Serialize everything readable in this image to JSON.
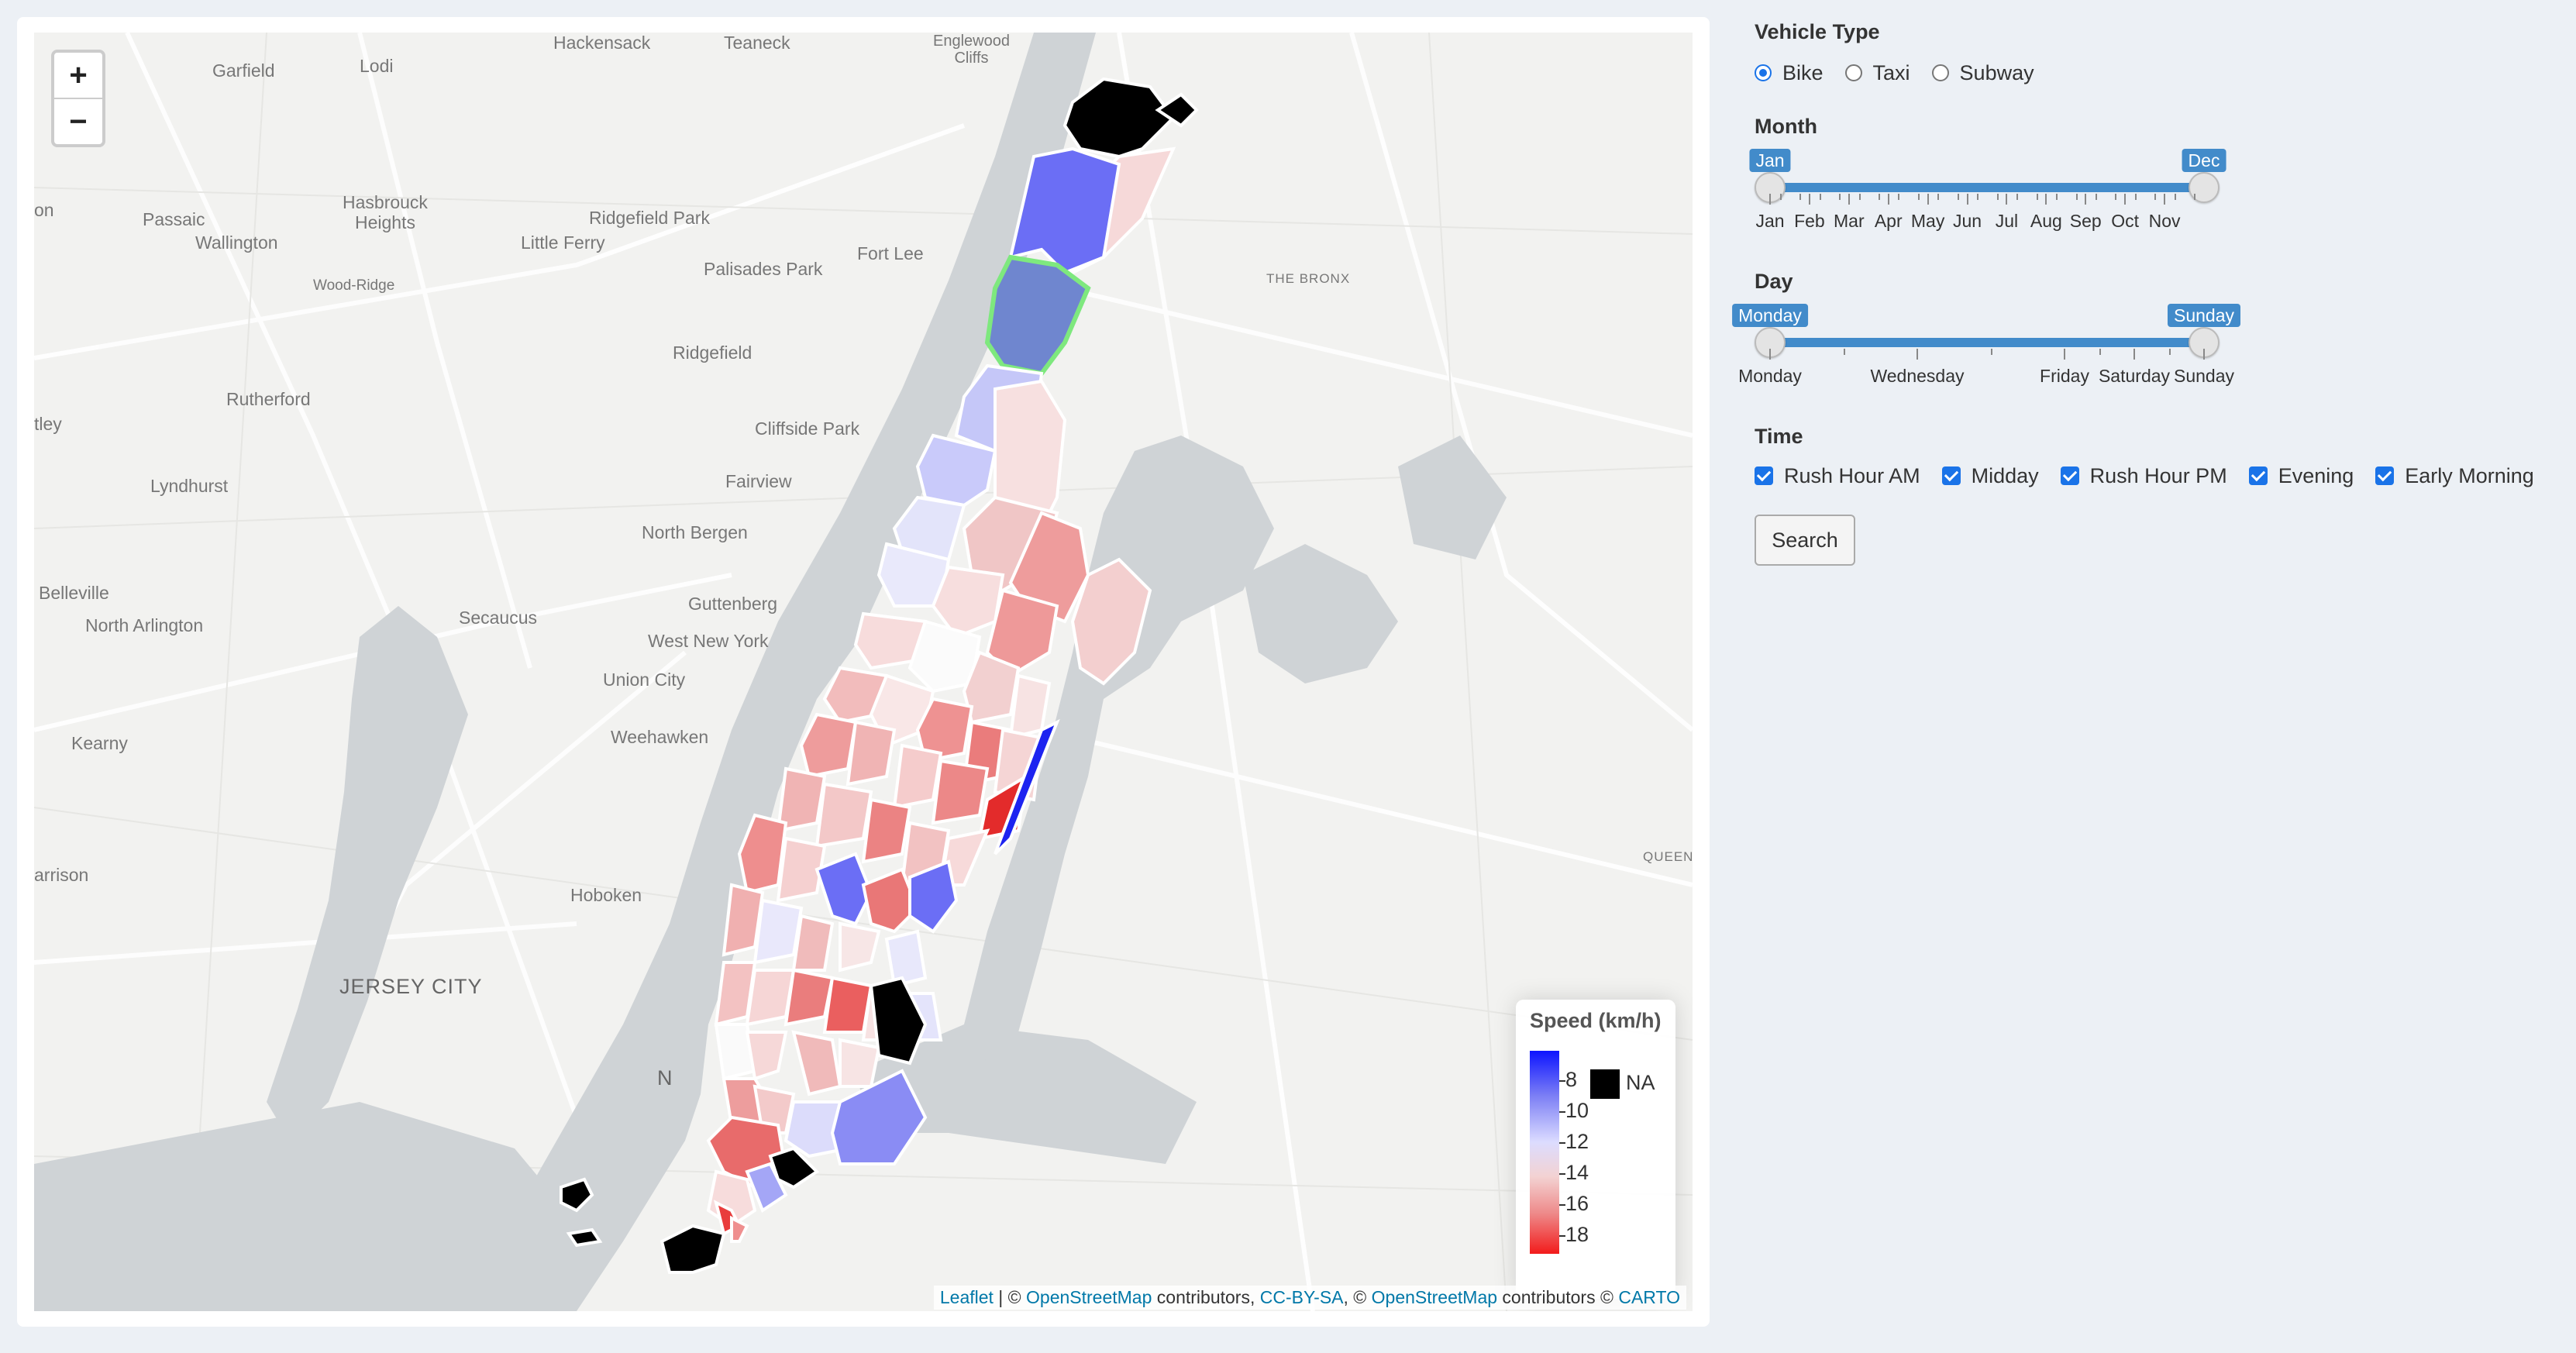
{
  "map": {
    "zoom_in": "+",
    "zoom_out": "−",
    "places": {
      "hackensack": "Hackensack",
      "teaneck": "Teaneck",
      "englewood": "Englewood\nCliffs",
      "garfield": "Garfield",
      "lodi": "Lodi",
      "on": "on",
      "passaic": "Passaic",
      "hasbrouck": "Hasbrouck\nHeights",
      "wallington": "Wallington",
      "ridgefield_park": "Ridgefield Park",
      "little_ferry": "Little Ferry",
      "fort_lee": "Fort Lee",
      "palisades": "Palisades Park",
      "wood_ridge": "Wood-Ridge",
      "bronx": "THE BRONX",
      "ridgefield": "Ridgefield",
      "rutherford": "Rutherford",
      "tley": "tley",
      "cliffside": "Cliffside Park",
      "fairview": "Fairview",
      "lyndhurst": "Lyndhurst",
      "north_bergen": "North Bergen",
      "belleville": "Belleville",
      "north_arlington": "North Arlington",
      "guttenberg": "Guttenberg",
      "secaucus": "Secaucus",
      "west_new_york": "West New York",
      "union_city": "Union City",
      "weehawken": "Weehawken",
      "kearny": "Kearny",
      "queen": "QUEEN",
      "harrison": "arrison",
      "hoboken": "Hoboken",
      "jersey_city": "JERSEY CITY",
      "n": "N"
    },
    "legend": {
      "title": "Speed (km/h)",
      "labels": [
        "8",
        "10",
        "12",
        "14",
        "16",
        "18"
      ],
      "na": "NA",
      "colors": {
        "low": "#0d14ff",
        "mid": "#dcdcff",
        "high": "#f21b1b",
        "na": "#000000",
        "selected": "#7ee87e"
      }
    },
    "attribution": {
      "leaflet": "Leaflet",
      "sep1": " | © ",
      "osm1": "OpenStreetMap",
      "t1": " contributors, ",
      "ccbysa": "CC-BY-SA",
      "t2": ", © ",
      "osm2": "OpenStreetMap",
      "t3": " contributors © ",
      "carto": "CARTO"
    }
  },
  "controls": {
    "vehicle_type": {
      "label": "Vehicle Type",
      "options": [
        "Bike",
        "Taxi",
        "Subway"
      ],
      "selected": "Bike"
    },
    "month": {
      "label": "Month",
      "from": "Jan",
      "to": "Dec",
      "ticks": [
        "Jan",
        "Feb",
        "Mar",
        "Apr",
        "May",
        "Jun",
        "Jul",
        "Aug",
        "Sep",
        "Oct",
        "Nov"
      ]
    },
    "day": {
      "label": "Day",
      "from": "Monday",
      "to": "Sunday",
      "ticks": [
        "Monday",
        "Wednesday",
        "Friday",
        "Saturday",
        "Sunday"
      ]
    },
    "time": {
      "label": "Time",
      "options": [
        "Rush Hour AM",
        "Midday",
        "Rush Hour PM",
        "Evening",
        "Early Morning"
      ]
    },
    "search_label": "Search"
  }
}
